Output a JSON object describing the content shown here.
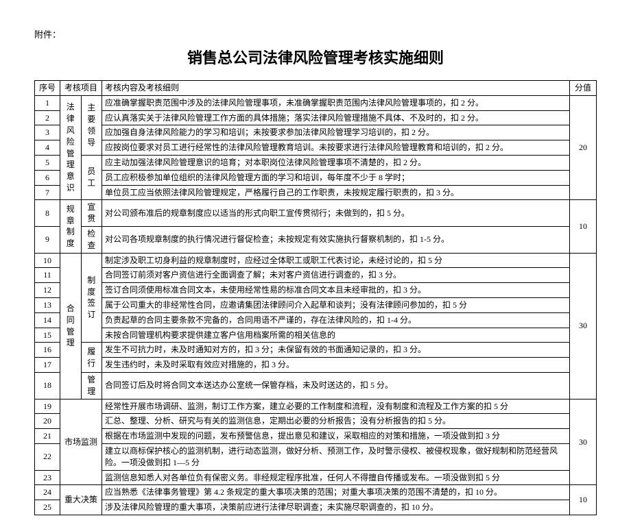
{
  "attachment_label": "附件：",
  "title": "销售总公司法律风险管理考核实施细则",
  "headers": {
    "seq": "序号",
    "project": "考核项目",
    "content": "考核内容及考核细则",
    "score": "分值"
  },
  "seq": [
    "1",
    "2",
    "3",
    "4",
    "5",
    "6",
    "7",
    "8",
    "9",
    "10",
    "11",
    "12",
    "13",
    "14",
    "15",
    "16",
    "17",
    "18",
    "19",
    "20",
    "21",
    "22",
    "23",
    "24",
    "25"
  ],
  "groups": {
    "g1_project": "法律风险管理意识",
    "g1_sub1": "主要领导",
    "g1_sub2": "员工",
    "g1_score": "20",
    "g2_project": "规章制度",
    "g2_sub1": "宣贯",
    "g2_sub2": "检查",
    "g2_score": "10",
    "g3_project": "合同管理",
    "g3_sub1": "制度签订",
    "g3_sub2": "履行",
    "g3_sub3": "管理",
    "g3_score": "30",
    "g4_project": "市场监测",
    "g4_score": "30",
    "g5_project": "重大决策",
    "g5_score": "10"
  },
  "rows": {
    "r1": "应准确掌握职责范围中涉及的法律风险管理事项，未准确掌握职责范围内法律风险管理事项的，扣 2 分。",
    "r2": "应认真落实关于法律风险管理工作方面的具体措施；落实法律风险管理措施不具体、不及时的，扣 2 分。",
    "r3": "应加强自身法律风险能力的学习和培训；未按要求参加法律风险管理学习培训的，扣 2 分。",
    "r4": "应按岗位要求对员工进行经常性的法律风险管理教育培训。未按要求进行法律风险管理教育和培训的，扣 2 分。",
    "r5": "应主动加强法律风险管理意识的培育；对本职岗位法律风险管理事项不清楚的，扣 2 分。",
    "r6": "员工应积极参加单位组织的法律风险管理方面的学习和培训，每年度不少于 8 学时；",
    "r7": "单位员工应当依照法律风险管理规定，严格履行自己的工作职责，未按规定履行职责的，扣 3 分。",
    "r8": "对公司颁布准后的规章制度应以适当的形式向职工宣传贯彻行；未做到的，扣 5 分。",
    "r9": "对公司各项规章制度的执行情况进行督促检查；未按规定有效实施执行督察机制的，扣 1-5 分。",
    "r10": "制定涉及职工切身利益的规章制度时，应经过全体职工或职工代表讨论，未经讨论的，扣 5 分",
    "r11": "合同签订前须对客户资信进行全面调查了解；未对客户资信进行调查的，扣 3 分。",
    "r12": "签订合同须使用标准合同文本，未使用经常性易的标准合同文本且未经审批的，扣 3 分。",
    "r13": "属于公司重大的非经常性合同，应邀请集团法律顾问介入起草和谈判；没有法律顾问参加的，扣 5 分",
    "r14": "负责起草的合同主要条款不完备的，合同用语不严谨的，存在法律风险的，扣 1-4 分。",
    "r15": "未按合同管理机构要求提供建立客户信用档案所需的相关信息的",
    "r16": "发生不可抗力时，未及时通知对方的，扣 3 分；未保留有效的书面通知记录的，扣 3 分。",
    "r17": "发生违约时，未及时采取有效应对措施的，扣 3 分。",
    "r18": "合同签订后及时将合同文本送达办公室统一保管存档，未及时送达的，扣 5 分。",
    "r19": "经常性开展市场调研、监测，制订工作方案，建立必要的工作制度和流程，没有制度和流程及工作方案的扣 5 分",
    "r20": "汇总、整理、分析、研究与有关的监测信息，定期出必要的分析报告；没有分析报告的扣 5 分。",
    "r21": "根据在市场监测中发现的问题，发布预警信息，提出意见和建议，采取相应的对策和措施，一项没做到扣 3 分",
    "r22": "建立以商标保护核心的监测机制，进行动态监测，做好分析、预测工作，及时警示侵权、被侵权现象，做好规制和防范经营风险。一项没做到扣 1—5 分",
    "r23": "监测信息知悉人对各单位负有保密义务。非经规定程序批准，任何人不得擅自传播或发布。一项没做到扣 5 分",
    "r24": "应当熟悉《法律事务管理》第 4.2 条规定的重大事项决策的范围；对重大事项决策的范围不清楚的，扣 10 分。",
    "r25": "涉及法律风险管理的重大事项，决策前应进行法律尽职调查；未实施尽职调查的，扣 10 分。"
  },
  "style": {
    "font_body": "SimSun",
    "font_title": "SimHei",
    "font_size_body": 12,
    "font_size_title": 22,
    "border_color": "#000000",
    "background_color": "#ffffff",
    "text_color": "#000000"
  }
}
